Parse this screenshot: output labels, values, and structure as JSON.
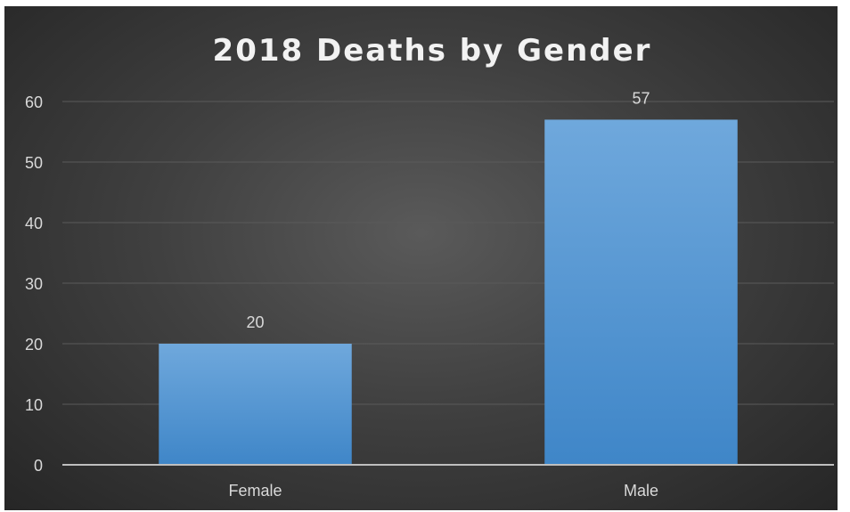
{
  "chart_data": {
    "type": "bar",
    "title": "2018 Deaths by Gender",
    "xlabel": "",
    "ylabel": "",
    "categories": [
      "Female",
      "Male"
    ],
    "values": [
      20,
      57
    ],
    "data_labels": [
      "20",
      "57"
    ],
    "ylim": [
      0,
      60
    ],
    "yticks": [
      "0",
      "10",
      "20",
      "30",
      "40",
      "50",
      "60"
    ],
    "grid": true,
    "legend": "none",
    "colors": {
      "bar_top": "#6fa8dc",
      "bar_bottom": "#3f86c8",
      "background": "#404040",
      "gridline": "#5a5a5a",
      "axis": "#bfbfbf",
      "text": "#d9d9d9",
      "title": "#f2f2f2"
    }
  }
}
